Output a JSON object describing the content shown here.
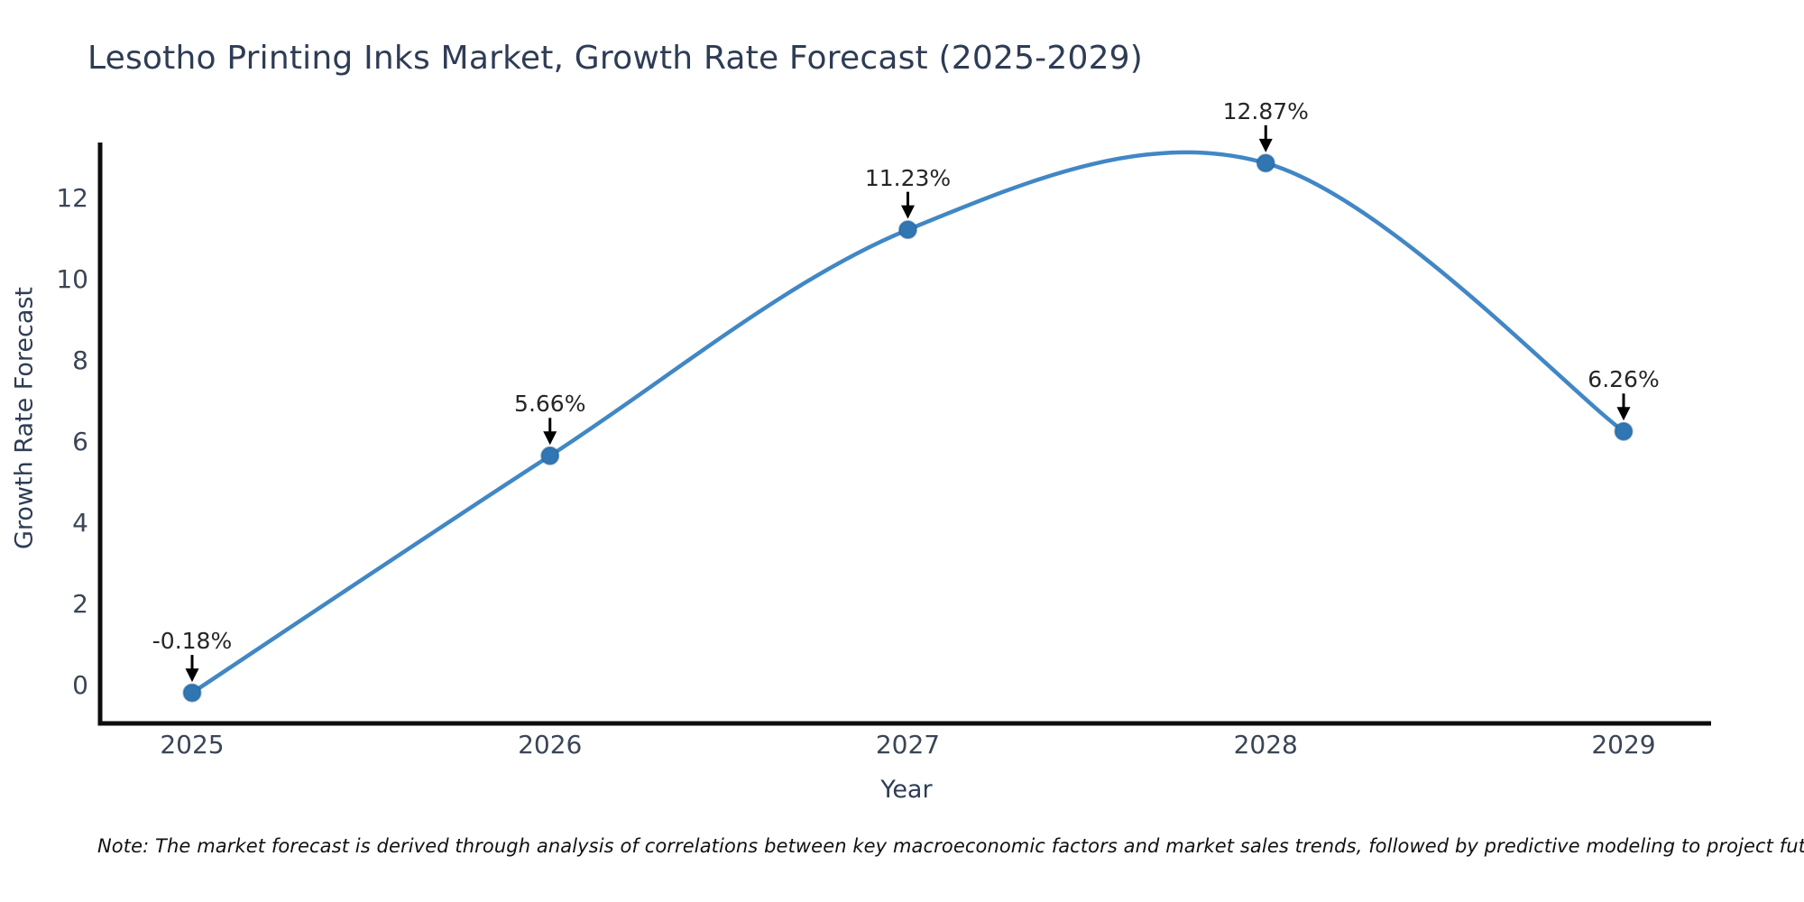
{
  "title": "Lesotho Printing Inks Market, Growth Rate Forecast (2025-2029)",
  "note": "Note: The market forecast is derived through analysis of correlations between key macroeconomic factors and market sales trends, followed by predictive modeling to project future sales",
  "chart_data": {
    "type": "line",
    "title": "Lesotho Printing Inks Market, Growth Rate Forecast (2025-2029)",
    "xlabel": "Year",
    "ylabel": "Growth Rate Forecast",
    "x": [
      2025,
      2026,
      2027,
      2028,
      2029
    ],
    "series": [
      {
        "name": "Growth Rate Forecast",
        "values": [
          -0.18,
          5.66,
          11.23,
          12.87,
          6.26
        ]
      }
    ],
    "point_labels": [
      "-0.18%",
      "5.66%",
      "11.23%",
      "12.87%",
      "6.26%"
    ],
    "xticks": [
      "2025",
      "2026",
      "2027",
      "2028",
      "2029"
    ],
    "yticks": [
      0,
      2,
      4,
      6,
      8,
      10,
      12
    ],
    "ylim": [
      -1,
      13.4
    ],
    "grid": false,
    "legend": "none",
    "line_style": "smooth-spline",
    "marker": "circle",
    "annotation_arrows": true,
    "colors": {
      "line": "#4187c5",
      "marker": "#2f76b3",
      "marker_edge": "#266196",
      "axis_spine": "#0d0d0d",
      "arrow": "#000000",
      "title_text": "#2e3c55",
      "tick_text": "#3a4556",
      "annotation_text": "#262626",
      "note_text": "#111111"
    }
  }
}
